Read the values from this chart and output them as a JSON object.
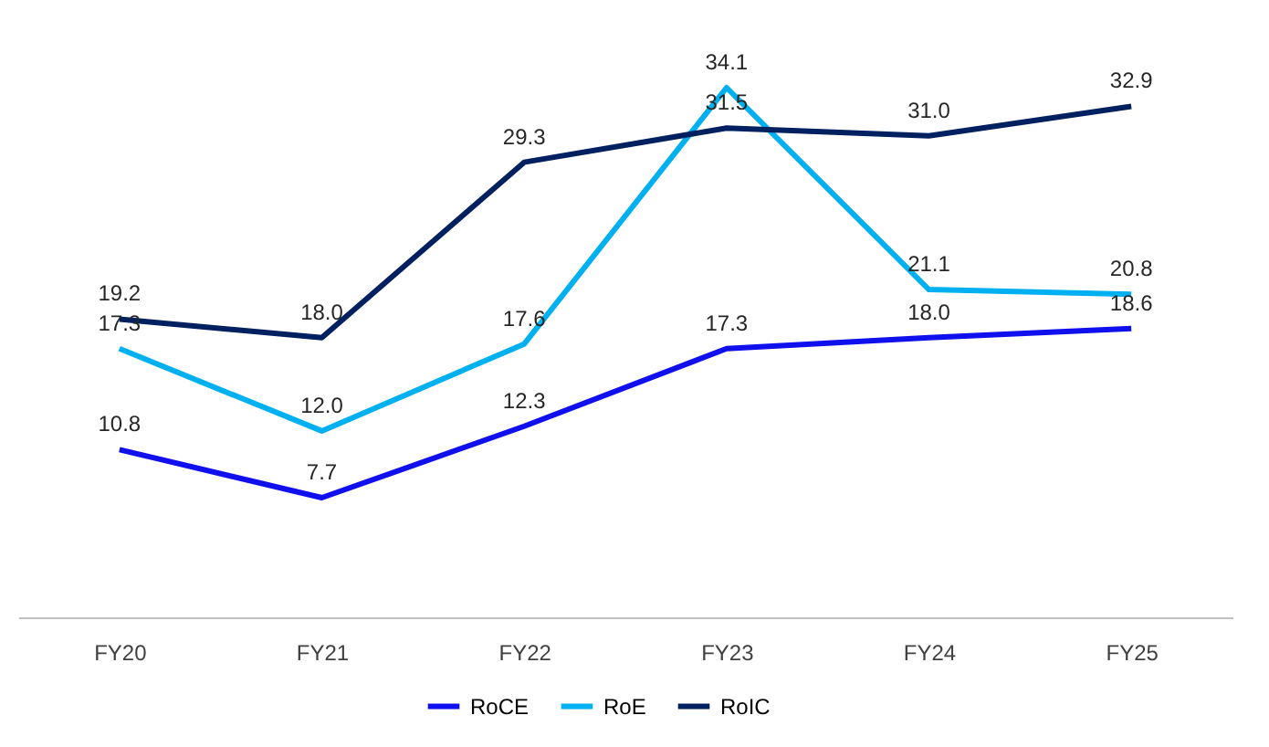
{
  "chart_data": {
    "type": "line",
    "categories": [
      "FY20",
      "FY21",
      "FY22",
      "FY23",
      "FY24",
      "FY25"
    ],
    "series": [
      {
        "name": "RoCE",
        "color": "#1010ee",
        "values": [
          10.8,
          7.7,
          12.3,
          17.3,
          18.0,
          18.6
        ],
        "value_labels": [
          "10.8",
          "7.7",
          "12.3",
          "17.3",
          "18.0",
          "18.6"
        ]
      },
      {
        "name": "RoE",
        "color": "#00b0f0",
        "values": [
          17.3,
          12.0,
          17.6,
          34.1,
          21.1,
          20.8
        ],
        "value_labels": [
          "17.3",
          "12.0",
          "17.6",
          "34.1",
          "21.1",
          "20.8"
        ]
      },
      {
        "name": "RoIC",
        "color": "#002060",
        "values": [
          19.2,
          18.0,
          29.3,
          31.5,
          31.0,
          32.9
        ],
        "value_labels": [
          "19.2",
          "18.0",
          "29.3",
          "31.5",
          "31.0",
          "32.9"
        ]
      }
    ],
    "tick_labels": "x",
    "data_labels": true,
    "grid": false,
    "legend": "bottom",
    "line_style": "solid"
  }
}
